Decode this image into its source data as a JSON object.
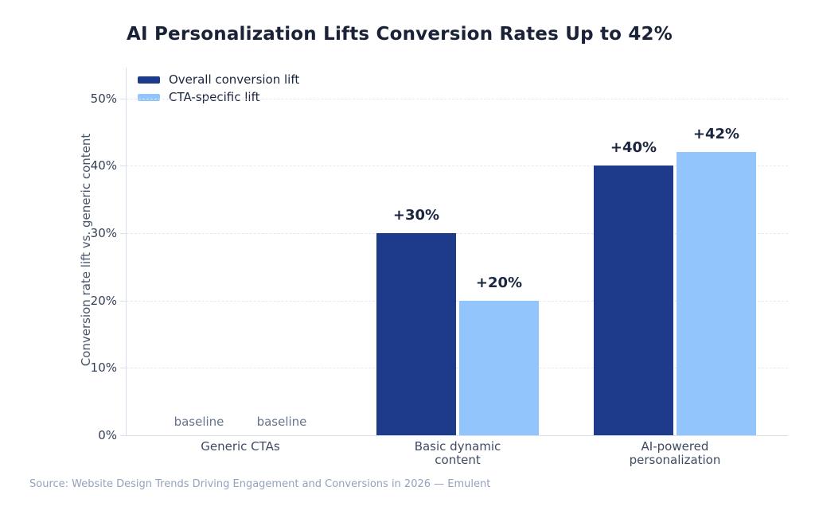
{
  "header": {
    "title": "AI Personalization Lifts Conversion Rates Up to 42%"
  },
  "chart_data": {
    "type": "bar",
    "title": "AI Personalization Lifts Conversion Rates Up to 42%",
    "xlabel": "",
    "ylabel": "Conversion rate lift vs. generic content",
    "ylim": [
      0,
      54.5
    ],
    "yticks": [
      0,
      10,
      20,
      30,
      40,
      50
    ],
    "ytick_labels": [
      "0%",
      "10%",
      "20%",
      "30%",
      "40%",
      "50%"
    ],
    "grid": "horizontal-dashed",
    "legend_position": "top-left-inside",
    "categories": [
      "Generic CTAs",
      "Basic dynamic content",
      "AI-powered personalization"
    ],
    "category_lines": [
      [
        "Generic CTAs"
      ],
      [
        "Basic dynamic",
        "content"
      ],
      [
        "AI-powered",
        "personalization"
      ]
    ],
    "series": [
      {
        "name": "Overall conversion lift",
        "color": "#1e3a8a",
        "values": [
          0,
          30,
          40
        ],
        "bar_labels": [
          "baseline",
          "+30%",
          "+40%"
        ]
      },
      {
        "name": "CTA-specific lift",
        "color": "#93c5fd",
        "values": [
          0,
          20,
          42
        ],
        "bar_labels": [
          "baseline",
          "+20%",
          "+42%"
        ]
      }
    ]
  },
  "footer": {
    "source": "Source: Website Design Trends Driving Engagement and Conversions in 2026 — Emulent"
  }
}
